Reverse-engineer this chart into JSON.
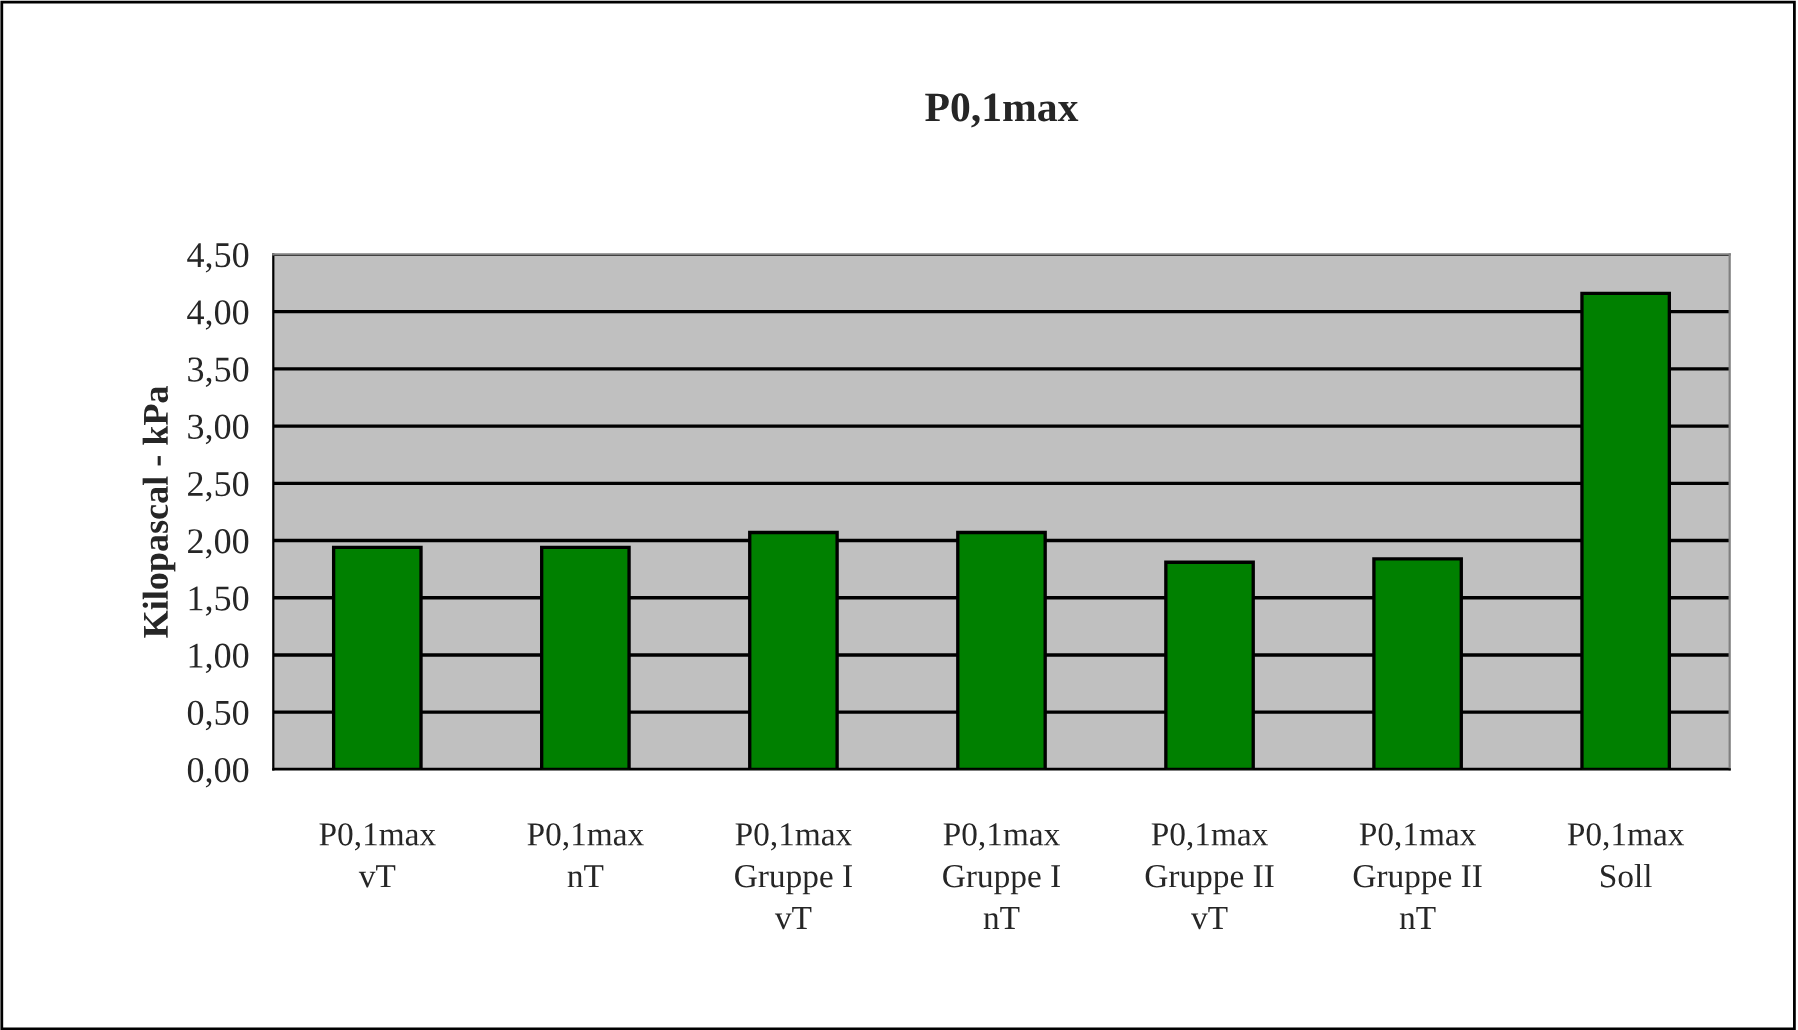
{
  "chart_data": {
    "type": "bar",
    "title": "P0,1max",
    "ylabel": "Kilopascal - kPa",
    "categories": [
      "P0,1max\nvT",
      "P0,1max\nnT",
      "P0,1max\nGruppe I\nvT",
      "P0,1max\nGruppe I\nnT",
      "P0,1max\nGruppe II\nvT",
      "P0,1max\nGruppe II\nnT",
      "P0,1max\nSoll"
    ],
    "values": [
      1.94,
      1.94,
      2.07,
      2.07,
      1.81,
      1.84,
      4.16
    ],
    "color": "#008000",
    "ylim": [
      0,
      4.5
    ],
    "yticks": [
      {
        "value": 0,
        "label": "0,00"
      },
      {
        "value": 0.5,
        "label": "0,50"
      },
      {
        "value": 1,
        "label": "1,00"
      },
      {
        "value": 1.5,
        "label": "1,50"
      },
      {
        "value": 2,
        "label": "2,00"
      },
      {
        "value": 2.5,
        "label": "2,50"
      },
      {
        "value": 3,
        "label": "3,00"
      },
      {
        "value": 3.5,
        "label": "3,50"
      },
      {
        "value": 4,
        "label": "4,00"
      },
      {
        "value": 4.5,
        "label": "4,50"
      }
    ],
    "grid": "y"
  }
}
